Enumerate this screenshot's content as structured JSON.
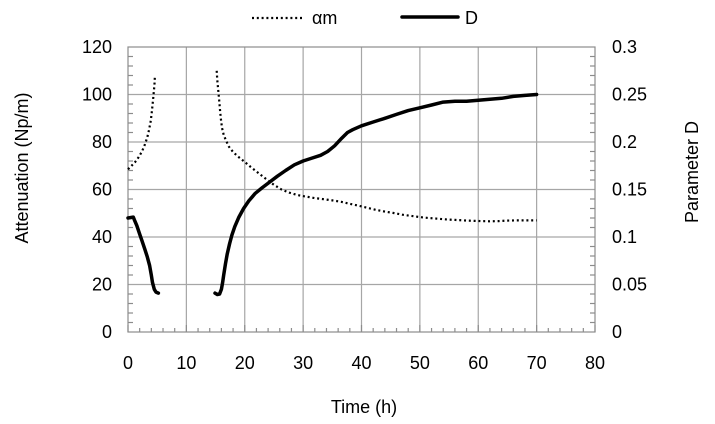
{
  "chart": {
    "colors": {
      "background": "#ffffff",
      "series": "#000000",
      "gridline": "#a6a6a6",
      "plot_border": "#8c8c8c",
      "text": "#000000"
    },
    "legend": {
      "items": [
        {
          "label": "αm",
          "style": "dotted"
        },
        {
          "label": "D",
          "style": "solid"
        }
      ]
    }
  },
  "chart_data": {
    "type": "line",
    "title": "",
    "xlabel": "Time (h)",
    "ylabel_left": "Attenuation (Np/m)",
    "ylabel_right": "Parameter D",
    "xlim": [
      0,
      80
    ],
    "ylim_left": [
      0,
      120
    ],
    "ylim_right": [
      0,
      0.3
    ],
    "x_tick_labels": [
      "0",
      "10",
      "20",
      "30",
      "40",
      "50",
      "60",
      "70",
      "80"
    ],
    "left_tick_labels": [
      "0",
      "20",
      "40",
      "60",
      "80",
      "100",
      "120"
    ],
    "right_tick_labels": [
      "0",
      "0.05",
      "0.1",
      "0.15",
      "0.2",
      "0.25",
      "0.3"
    ],
    "x_minor_step": 2,
    "left_minor_step": 4,
    "right_minor_step": 0.01,
    "grid": true,
    "legend_position": "top-center",
    "series": [
      {
        "name": "αm",
        "axis": "left",
        "style": "dotted",
        "color": "#000000",
        "branches": [
          [
            [
              0,
              68.5
            ],
            [
              0.6,
              70
            ],
            [
              1.2,
              71.5
            ],
            [
              1.8,
              73.5
            ],
            [
              2.4,
              76
            ],
            [
              2.9,
              79
            ],
            [
              3.3,
              82
            ],
            [
              3.6,
              85
            ],
            [
              3.9,
              89
            ],
            [
              4.1,
              93
            ],
            [
              4.3,
              98
            ],
            [
              4.45,
              102
            ],
            [
              4.55,
              105
            ],
            [
              4.6,
              108
            ]
          ],
          [
            [
              15.2,
              110
            ],
            [
              15.3,
              106
            ],
            [
              15.45,
              102
            ],
            [
              15.6,
              98
            ],
            [
              15.75,
              94
            ],
            [
              15.9,
              90
            ],
            [
              16.1,
              86
            ],
            [
              16.4,
              83
            ],
            [
              16.8,
              80.5
            ],
            [
              17.3,
              78
            ],
            [
              18,
              75.8
            ],
            [
              18.8,
              74
            ],
            [
              19.8,
              72
            ],
            [
              21,
              69.5
            ],
            [
              22.3,
              67
            ],
            [
              23.6,
              64.5
            ],
            [
              25,
              62
            ],
            [
              26.3,
              60
            ],
            [
              27.6,
              58.7
            ],
            [
              29,
              57.7
            ],
            [
              30.5,
              57
            ],
            [
              32,
              56.4
            ],
            [
              33.5,
              55.9
            ],
            [
              35,
              55.4
            ],
            [
              36.5,
              54.8
            ],
            [
              38,
              54
            ],
            [
              39.5,
              53.2
            ],
            [
              41,
              52.3
            ],
            [
              42.5,
              51.4
            ],
            [
              44,
              50.7
            ],
            [
              45.5,
              50.1
            ],
            [
              47,
              49.4
            ],
            [
              48.5,
              48.9
            ],
            [
              50,
              48.4
            ],
            [
              51.5,
              48
            ],
            [
              53,
              47.7
            ],
            [
              54.5,
              47.4
            ],
            [
              56,
              47.2
            ],
            [
              57.5,
              47
            ],
            [
              59,
              46.8
            ],
            [
              60.5,
              46.7
            ],
            [
              62,
              46.6
            ],
            [
              63.5,
              46.7
            ],
            [
              65,
              46.9
            ],
            [
              66.3,
              47
            ],
            [
              67.6,
              47
            ],
            [
              69,
              47
            ],
            [
              70,
              47
            ]
          ]
        ]
      },
      {
        "name": "D",
        "axis": "right",
        "style": "solid",
        "color": "#000000",
        "branches": [
          [
            [
              0,
              0.12
            ],
            [
              0.9,
              0.121
            ],
            [
              1.1,
              0.118
            ],
            [
              1.5,
              0.112
            ],
            [
              2.0,
              0.103
            ],
            [
              2.4,
              0.096
            ],
            [
              2.9,
              0.087
            ],
            [
              3.3,
              0.079
            ],
            [
              3.7,
              0.07
            ],
            [
              4.0,
              0.06
            ],
            [
              4.2,
              0.052
            ],
            [
              4.5,
              0.045
            ],
            [
              4.8,
              0.042
            ],
            [
              5.2,
              0.041
            ]
          ],
          [
            [
              14.9,
              0.041
            ],
            [
              15.3,
              0.0395
            ],
            [
              15.7,
              0.04
            ],
            [
              16.0,
              0.045
            ],
            [
              16.2,
              0.052
            ],
            [
              16.4,
              0.06
            ],
            [
              16.7,
              0.072
            ],
            [
              17.0,
              0.082
            ],
            [
              17.4,
              0.093
            ],
            [
              17.8,
              0.102
            ],
            [
              18.3,
              0.111
            ],
            [
              19.0,
              0.121
            ],
            [
              19.8,
              0.13
            ],
            [
              20.7,
              0.138
            ],
            [
              21.8,
              0.146
            ],
            [
              23.0,
              0.152
            ],
            [
              24.3,
              0.158
            ],
            [
              25.6,
              0.164
            ],
            [
              27.0,
              0.17
            ],
            [
              28.5,
              0.176
            ],
            [
              30.0,
              0.18
            ],
            [
              31.5,
              0.183
            ],
            [
              33.0,
              0.186
            ],
            [
              34.2,
              0.19
            ],
            [
              35.4,
              0.196
            ],
            [
              36.6,
              0.204
            ],
            [
              37.6,
              0.21
            ],
            [
              38.5,
              0.213
            ],
            [
              40.0,
              0.217
            ],
            [
              42.0,
              0.221
            ],
            [
              44.0,
              0.225
            ],
            [
              46.0,
              0.229
            ],
            [
              48.0,
              0.233
            ],
            [
              50.0,
              0.236
            ],
            [
              52.0,
              0.239
            ],
            [
              54.0,
              0.242
            ],
            [
              56.0,
              0.243
            ],
            [
              58.0,
              0.243
            ],
            [
              60.0,
              0.244
            ],
            [
              62.0,
              0.245
            ],
            [
              64.0,
              0.246
            ],
            [
              66.0,
              0.248
            ],
            [
              68.0,
              0.249
            ],
            [
              70.0,
              0.25
            ]
          ]
        ]
      }
    ]
  }
}
